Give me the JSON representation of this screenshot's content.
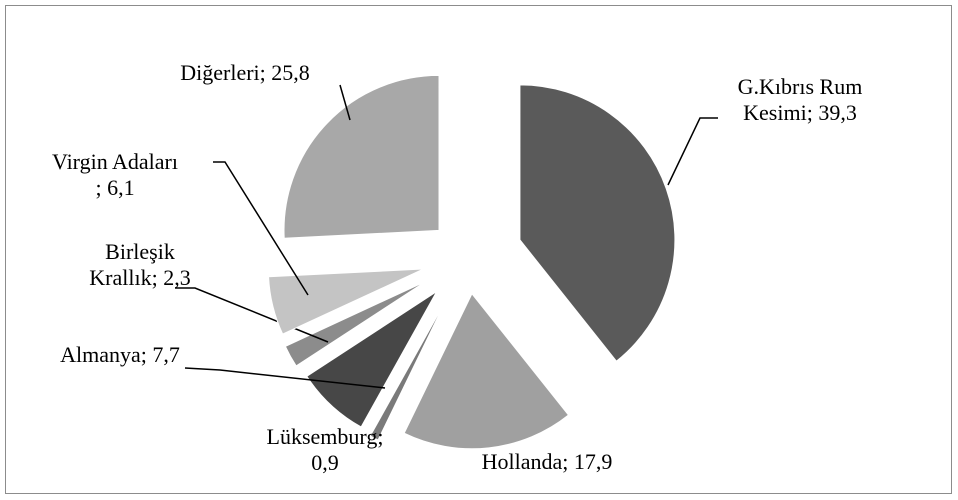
{
  "chart_data": {
    "type": "pie",
    "categories": [
      "G.Kıbrıs Rum Kesimi",
      "Hollanda",
      "Lüksemburg",
      "Almanya",
      "Birleşik Krallık",
      "Virgin Adaları",
      "Diğerleri"
    ],
    "values": [
      39.3,
      17.9,
      0.9,
      7.7,
      2.3,
      6.1,
      25.8
    ],
    "value_labels": [
      "39,3",
      "17,9",
      "0,9",
      "7,7",
      "2,3",
      "6,1",
      "25,8"
    ],
    "label_separator": "; ",
    "colors": [
      "#5a5a5a",
      "#a0a0a0",
      "#7a7a7a",
      "#474747",
      "#8c8c8c",
      "#c4c4c4",
      "#a8a8a8"
    ]
  }
}
